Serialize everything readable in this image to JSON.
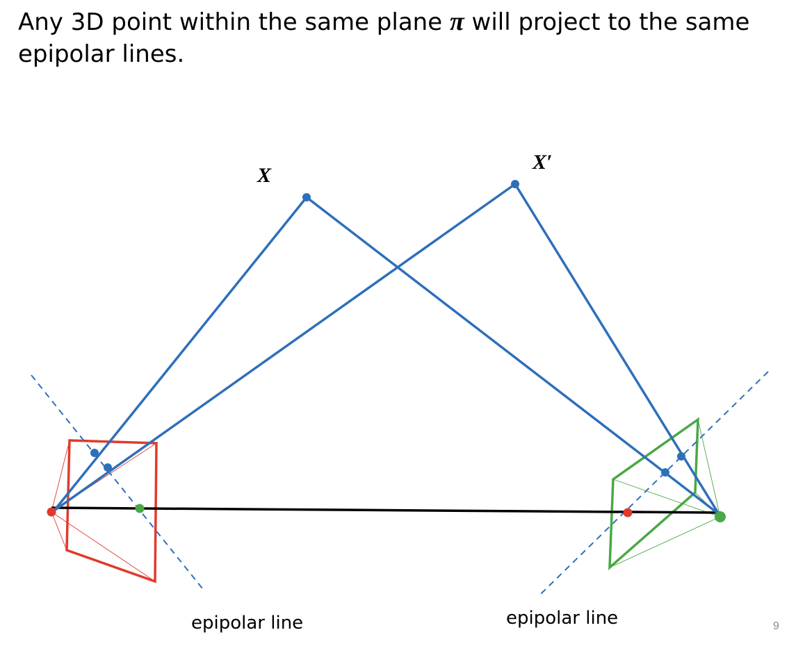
{
  "slide": {
    "title_pre": "Any 3D point within the same plane ",
    "title_symbol": "π",
    "title_post": " will project to the same epipolar lines.",
    "page_number": "9"
  },
  "diagram": {
    "point_labels": {
      "x": "X",
      "x_prime": "X′"
    },
    "captions": {
      "left": "epipolar line",
      "right": "epipolar line"
    },
    "colors": {
      "rays": "#2e6fba",
      "points": "#2e6fba",
      "baseline": "#000000",
      "left_camera": "#e03a2d",
      "right_camera": "#4aa845",
      "epipolar_dashed": "#2e6fba"
    }
  }
}
